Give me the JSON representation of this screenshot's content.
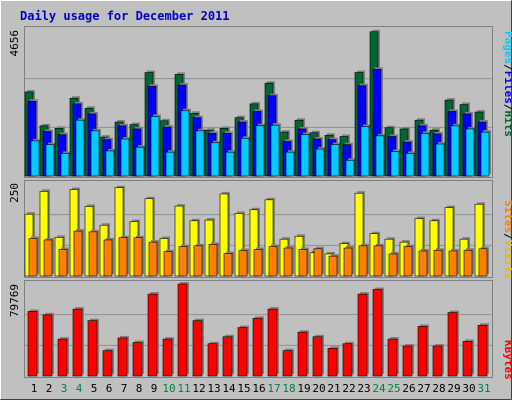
{
  "title": "Daily usage for December 2011",
  "colors": {
    "background": "#c0c0c0",
    "title": "#0000cc",
    "hits": "#006633",
    "files": "#0000ff",
    "pages": "#00ccff",
    "visits": "#ffff00",
    "sites": "#ff8000",
    "kbytes": "#ff0000",
    "weekend_label": "#008040",
    "weekday_label": "#000000"
  },
  "chart_data": [
    {
      "type": "bar",
      "title": "",
      "ymax_label": "4656",
      "ylim": [
        0,
        4656
      ],
      "legend": [
        "Pages",
        "/",
        "Files",
        "/",
        "Hits"
      ],
      "categories": [
        "1",
        "2",
        "3",
        "4",
        "5",
        "6",
        "7",
        "8",
        "9",
        "10",
        "11",
        "12",
        "13",
        "14",
        "15",
        "16",
        "17",
        "18",
        "19",
        "20",
        "21",
        "22",
        "23",
        "24",
        "25",
        "26",
        "27",
        "28",
        "29",
        "30",
        "31"
      ],
      "series": [
        {
          "name": "Hits",
          "values": [
            2680,
            1600,
            1520,
            2480,
            2160,
            1240,
            1720,
            1640,
            3300,
            1760,
            3240,
            2000,
            1460,
            1520,
            1860,
            2300,
            2960,
            1400,
            1780,
            1380,
            1300,
            1260,
            3300,
            4600,
            1540,
            1500,
            1780,
            1460,
            2420,
            2280,
            2040
          ]
        },
        {
          "name": "Files",
          "values": [
            2380,
            1420,
            1320,
            2300,
            1980,
            1160,
            1600,
            1500,
            2860,
            1560,
            2900,
            1860,
            1360,
            1360,
            1720,
            2060,
            2560,
            1100,
            1500,
            1180,
            1160,
            1000,
            2880,
            3400,
            1260,
            1080,
            1600,
            1340,
            2060,
            1980,
            1720
          ]
        },
        {
          "name": "Pages",
          "values": [
            1120,
            1000,
            720,
            1780,
            1440,
            800,
            1180,
            920,
            1900,
            760,
            2080,
            1440,
            1060,
            760,
            1200,
            1600,
            1620,
            760,
            1320,
            860,
            1000,
            500,
            1580,
            1280,
            780,
            720,
            1360,
            1020,
            1600,
            1500,
            1400
          ]
        }
      ]
    },
    {
      "type": "bar",
      "title": "",
      "ymax_label": "250",
      "ylim": [
        0,
        250
      ],
      "legend": [
        "Sites",
        "/",
        "Visits"
      ],
      "categories": [
        "1",
        "2",
        "3",
        "4",
        "5",
        "6",
        "7",
        "8",
        "9",
        "10",
        "11",
        "12",
        "13",
        "14",
        "15",
        "16",
        "17",
        "18",
        "19",
        "20",
        "21",
        "22",
        "23",
        "24",
        "25",
        "26",
        "27",
        "28",
        "29",
        "30",
        "31"
      ],
      "series": [
        {
          "name": "Visits",
          "values": [
            168,
            230,
            105,
            235,
            189,
            138,
            240,
            148,
            210,
            102,
            190,
            150,
            152,
            223,
            170,
            180,
            207,
            100,
            108,
            63,
            60,
            88,
            225,
            115,
            100,
            92,
            156,
            150,
            186,
            100,
            195
          ]
        },
        {
          "name": "Sites",
          "values": [
            102,
            98,
            72,
            122,
            120,
            98,
            104,
            104,
            92,
            66,
            80,
            82,
            86,
            61,
            69,
            72,
            80,
            76,
            72,
            74,
            54,
            76,
            82,
            82,
            60,
            80,
            68,
            70,
            68,
            70,
            74
          ]
        }
      ]
    },
    {
      "type": "bar",
      "title": "",
      "ymax_label": "79769",
      "ylim": [
        0,
        79769
      ],
      "legend": [
        "KBytes"
      ],
      "categories": [
        "1",
        "2",
        "3",
        "4",
        "5",
        "6",
        "7",
        "8",
        "9",
        "10",
        "11",
        "12",
        "13",
        "14",
        "15",
        "16",
        "17",
        "18",
        "19",
        "20",
        "21",
        "22",
        "23",
        "24",
        "25",
        "26",
        "27",
        "28",
        "29",
        "30",
        "31"
      ],
      "series": [
        {
          "name": "KBytes",
          "values": [
            56000,
            53000,
            32000,
            58000,
            48000,
            22000,
            33000,
            29000,
            71000,
            32000,
            79769,
            48000,
            28000,
            34000,
            42000,
            50000,
            58000,
            22000,
            38000,
            34000,
            24000,
            28000,
            71000,
            75000,
            32000,
            26000,
            43000,
            26000,
            55000,
            30000,
            44000
          ]
        }
      ]
    }
  ],
  "x_labels": [
    {
      "label": "1",
      "weekend": false
    },
    {
      "label": "2",
      "weekend": false
    },
    {
      "label": "3",
      "weekend": true
    },
    {
      "label": "4",
      "weekend": true
    },
    {
      "label": "5",
      "weekend": false
    },
    {
      "label": "6",
      "weekend": false
    },
    {
      "label": "7",
      "weekend": false
    },
    {
      "label": "8",
      "weekend": false
    },
    {
      "label": "9",
      "weekend": false
    },
    {
      "label": "10",
      "weekend": true
    },
    {
      "label": "11",
      "weekend": true
    },
    {
      "label": "12",
      "weekend": false
    },
    {
      "label": "13",
      "weekend": false
    },
    {
      "label": "14",
      "weekend": false
    },
    {
      "label": "15",
      "weekend": false
    },
    {
      "label": "16",
      "weekend": false
    },
    {
      "label": "17",
      "weekend": true
    },
    {
      "label": "18",
      "weekend": true
    },
    {
      "label": "19",
      "weekend": false
    },
    {
      "label": "20",
      "weekend": false
    },
    {
      "label": "21",
      "weekend": false
    },
    {
      "label": "22",
      "weekend": false
    },
    {
      "label": "23",
      "weekend": false
    },
    {
      "label": "24",
      "weekend": true
    },
    {
      "label": "25",
      "weekend": true
    },
    {
      "label": "26",
      "weekend": false
    },
    {
      "label": "27",
      "weekend": false
    },
    {
      "label": "28",
      "weekend": false
    },
    {
      "label": "29",
      "weekend": false
    },
    {
      "label": "30",
      "weekend": false
    },
    {
      "label": "31",
      "weekend": true
    }
  ]
}
